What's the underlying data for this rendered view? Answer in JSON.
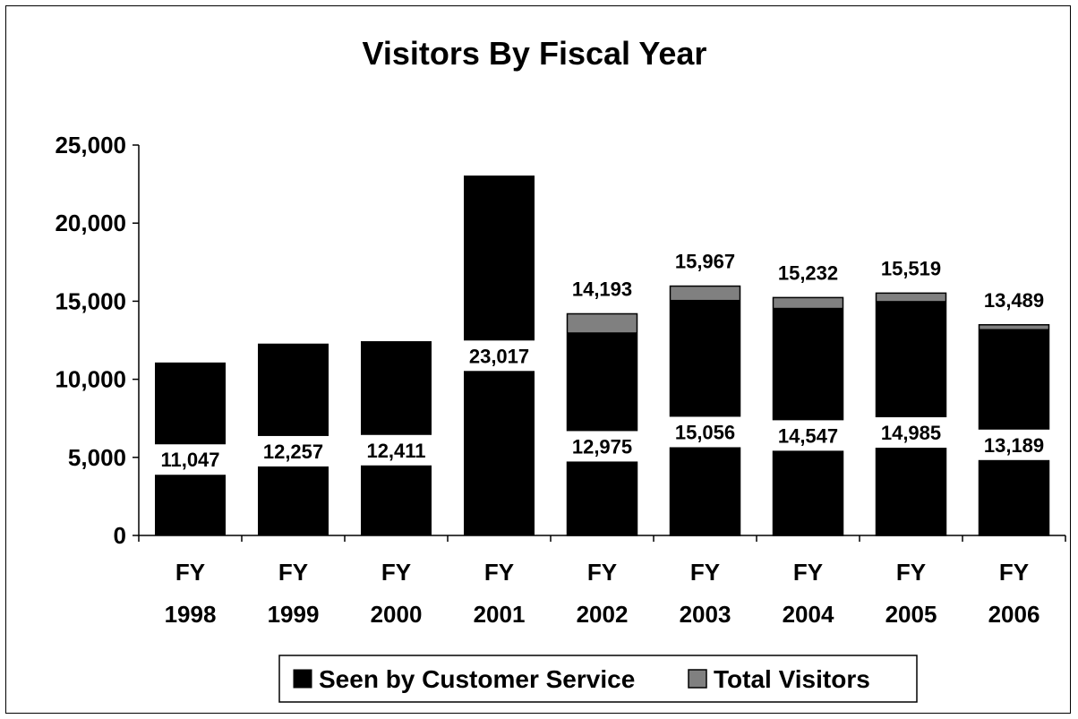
{
  "chart_data": {
    "type": "bar",
    "title": "Visitors By Fiscal Year",
    "categories": [
      [
        "FY",
        "1998"
      ],
      [
        "FY",
        "1999"
      ],
      [
        "FY",
        "2000"
      ],
      [
        "FY",
        "2001"
      ],
      [
        "FY",
        "2002"
      ],
      [
        "FY",
        "2003"
      ],
      [
        "FY",
        "2004"
      ],
      [
        "FY",
        "2005"
      ],
      [
        "FY",
        "2006"
      ]
    ],
    "ylim": [
      0,
      25000
    ],
    "yticks": [
      0,
      5000,
      10000,
      15000,
      20000,
      25000
    ],
    "ytick_labels": [
      "0",
      "5,000",
      "10,000",
      "15,000",
      "20,000",
      "25,000"
    ],
    "legend_position": "bottom",
    "series": [
      {
        "name": "Seen by Customer Service",
        "color": "#000000",
        "values": [
          11047,
          12257,
          12411,
          23017,
          12975,
          15056,
          14547,
          14985,
          13189
        ],
        "labels": [
          "11,047",
          "12,257",
          "12,411",
          "23,017",
          "12,975",
          "15,056",
          "14,547",
          "14,985",
          "13,189"
        ]
      },
      {
        "name": "Total Visitors",
        "color": "#808080",
        "values": [
          null,
          null,
          null,
          null,
          14193,
          15967,
          15232,
          15519,
          13489
        ],
        "labels": [
          null,
          null,
          null,
          null,
          "14,193",
          "15,967",
          "15,232",
          "15,519",
          "13,489"
        ]
      }
    ]
  }
}
